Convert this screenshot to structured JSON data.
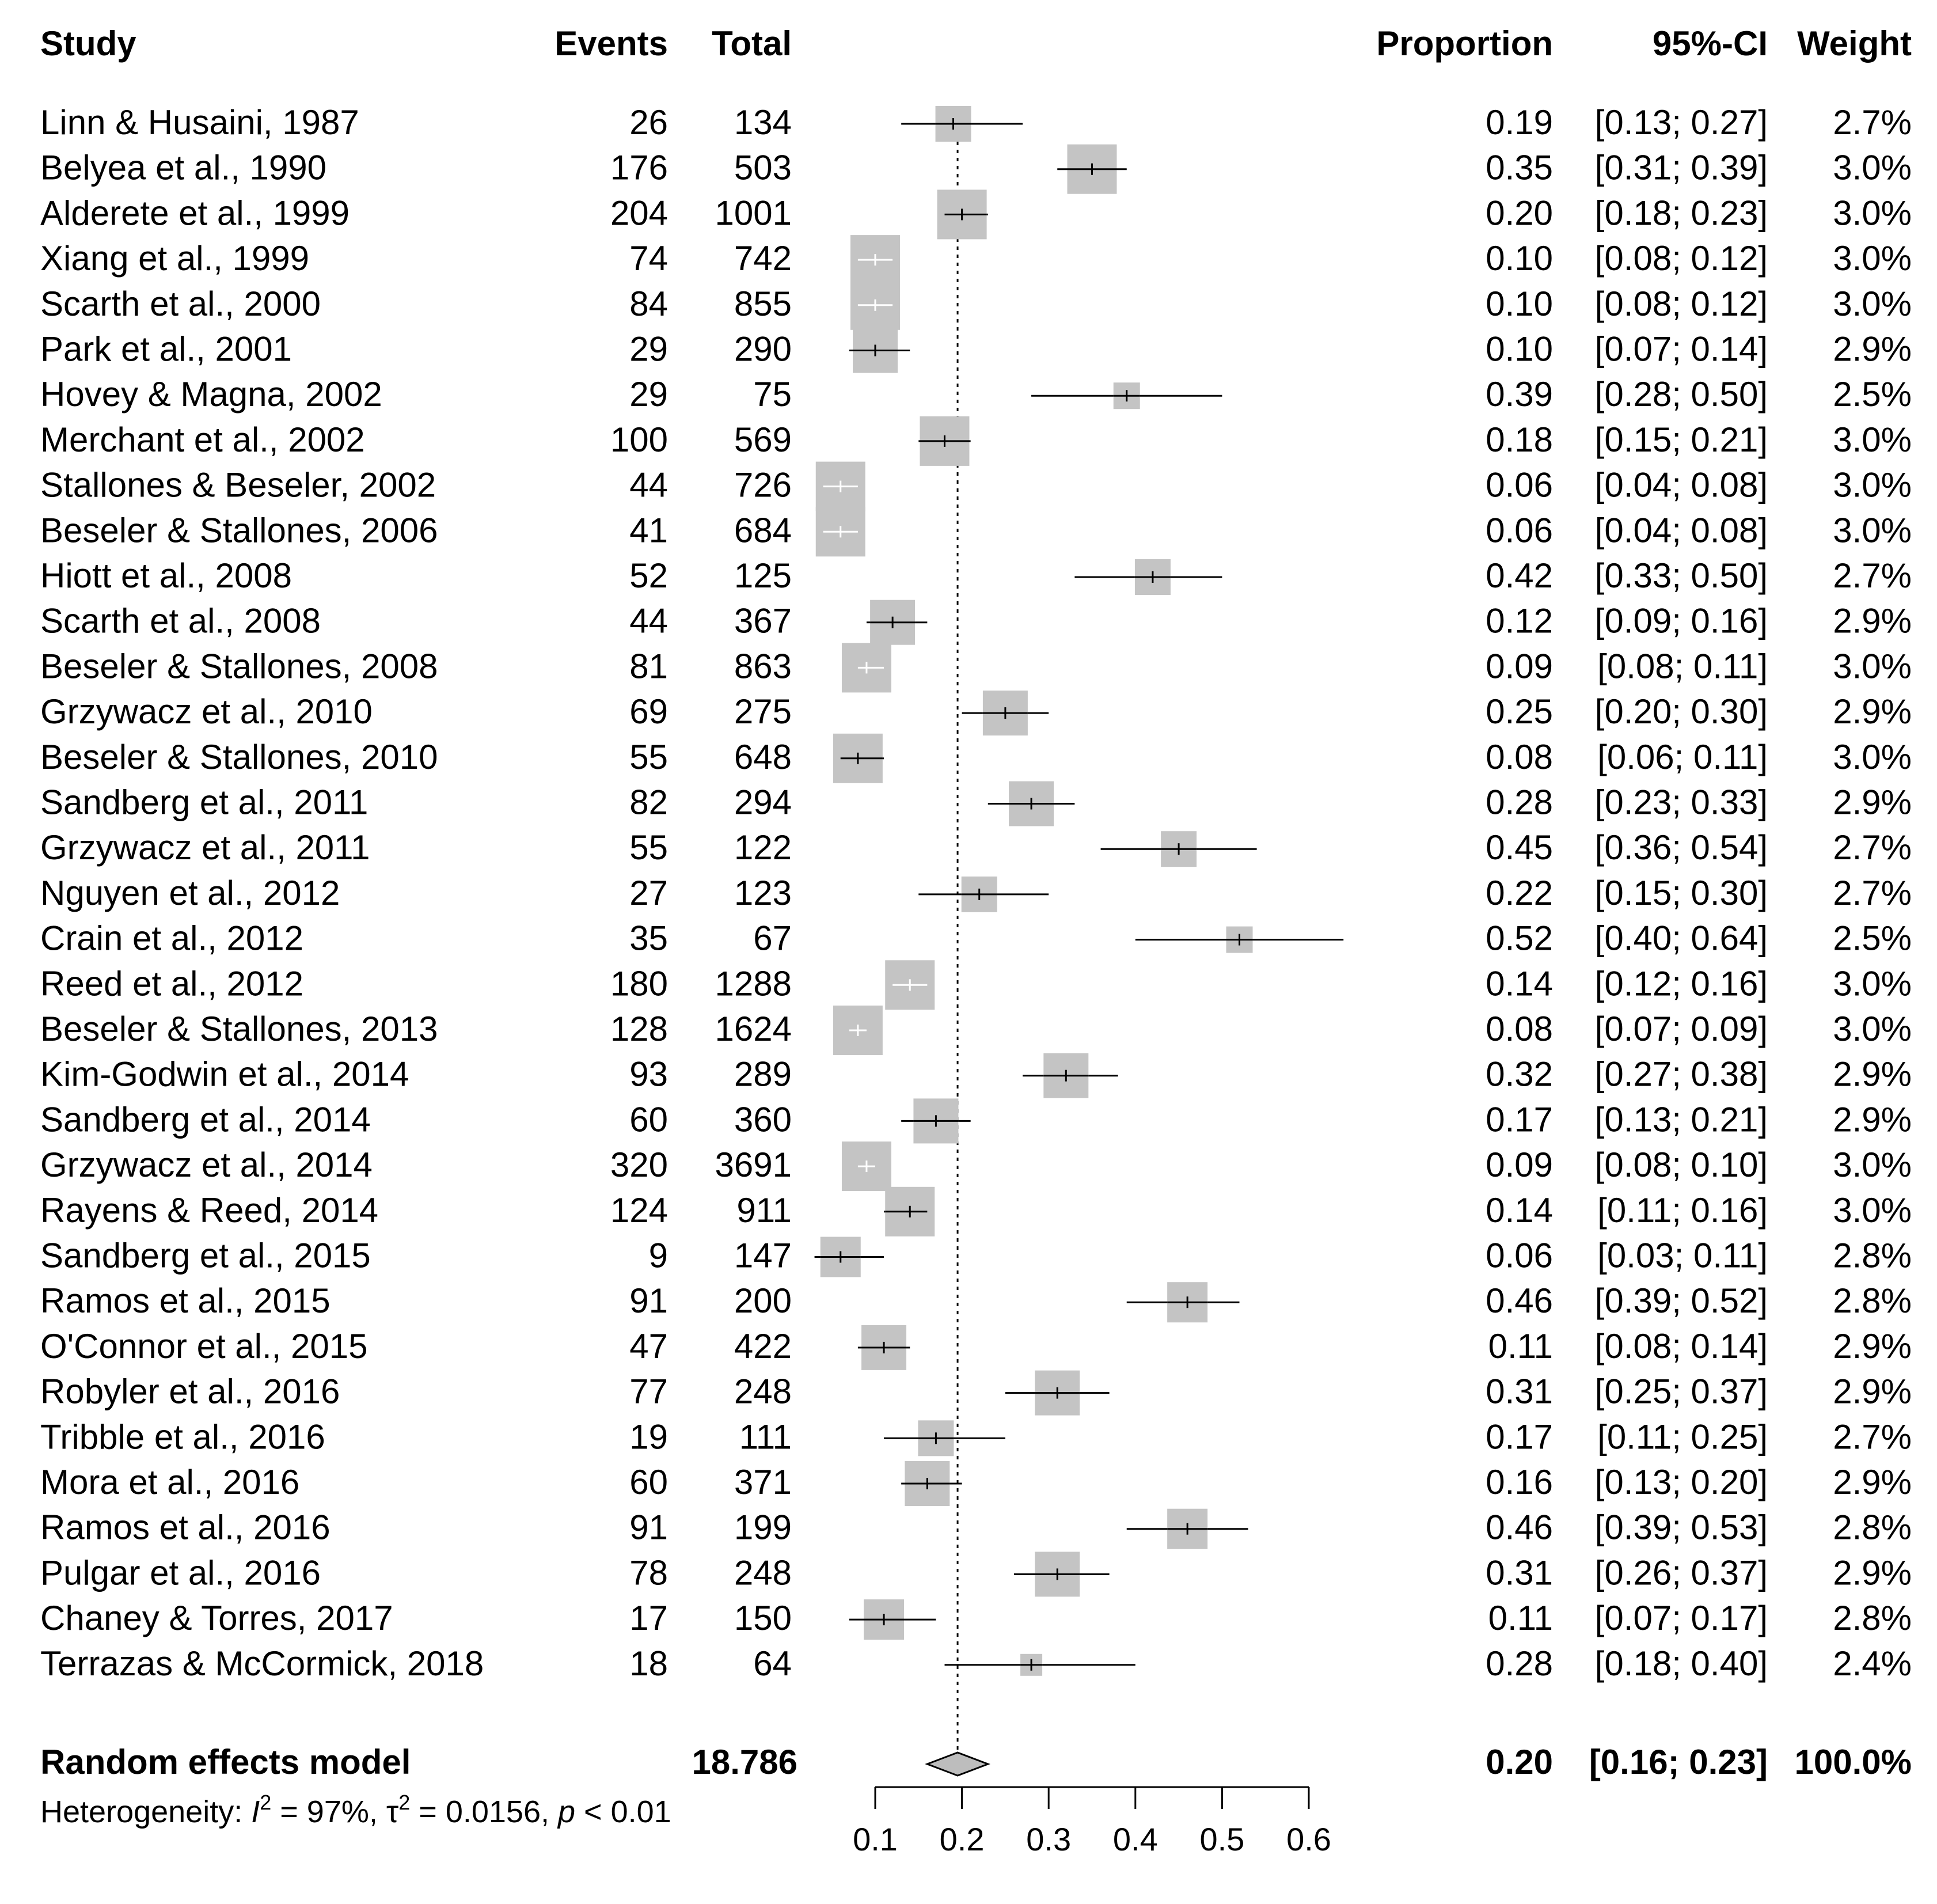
{
  "chart_data": {
    "type": "forest",
    "columns": {
      "study": "Study",
      "events": "Events",
      "total": "Total",
      "proportion": "Proportion",
      "ci": "95%-CI",
      "weight": "Weight"
    },
    "studies": [
      {
        "study": "Linn & Husaini, 1987",
        "events": "26",
        "total": "134",
        "prop_text": "0.19",
        "ci_text": "[0.13; 0.27]",
        "weight_text": "2.7%",
        "prop": 0.19,
        "lower": 0.13,
        "upper": 0.27,
        "weight": 2.7
      },
      {
        "study": "Belyea et al., 1990",
        "events": "176",
        "total": "503",
        "prop_text": "0.35",
        "ci_text": "[0.31; 0.39]",
        "weight_text": "3.0%",
        "prop": 0.35,
        "lower": 0.31,
        "upper": 0.39,
        "weight": 3.0
      },
      {
        "study": "Alderete et al., 1999",
        "events": "204",
        "total": "1001",
        "prop_text": "0.20",
        "ci_text": "[0.18; 0.23]",
        "weight_text": "3.0%",
        "prop": 0.2,
        "lower": 0.18,
        "upper": 0.23,
        "weight": 3.0
      },
      {
        "study": "Xiang et al., 1999",
        "events": "74",
        "total": "742",
        "prop_text": "0.10",
        "ci_text": "[0.08; 0.12]",
        "weight_text": "3.0%",
        "prop": 0.1,
        "lower": 0.08,
        "upper": 0.12,
        "weight": 3.0
      },
      {
        "study": "Scarth et al., 2000",
        "events": "84",
        "total": "855",
        "prop_text": "0.10",
        "ci_text": "[0.08; 0.12]",
        "weight_text": "3.0%",
        "prop": 0.1,
        "lower": 0.08,
        "upper": 0.12,
        "weight": 3.0
      },
      {
        "study": "Park et al., 2001",
        "events": "29",
        "total": "290",
        "prop_text": "0.10",
        "ci_text": "[0.07; 0.14]",
        "weight_text": "2.9%",
        "prop": 0.1,
        "lower": 0.07,
        "upper": 0.14,
        "weight": 2.9
      },
      {
        "study": "Hovey & Magna, 2002",
        "events": "29",
        "total": "75",
        "prop_text": "0.39",
        "ci_text": "[0.28; 0.50]",
        "weight_text": "2.5%",
        "prop": 0.39,
        "lower": 0.28,
        "upper": 0.5,
        "weight": 2.5
      },
      {
        "study": "Merchant et al., 2002",
        "events": "100",
        "total": "569",
        "prop_text": "0.18",
        "ci_text": "[0.15; 0.21]",
        "weight_text": "3.0%",
        "prop": 0.18,
        "lower": 0.15,
        "upper": 0.21,
        "weight": 3.0
      },
      {
        "study": "Stallones & Beseler, 2002",
        "events": "44",
        "total": "726",
        "prop_text": "0.06",
        "ci_text": "[0.04; 0.08]",
        "weight_text": "3.0%",
        "prop": 0.06,
        "lower": 0.04,
        "upper": 0.08,
        "weight": 3.0
      },
      {
        "study": "Beseler & Stallones, 2006",
        "events": "41",
        "total": "684",
        "prop_text": "0.06",
        "ci_text": "[0.04; 0.08]",
        "weight_text": "3.0%",
        "prop": 0.06,
        "lower": 0.04,
        "upper": 0.08,
        "weight": 3.0
      },
      {
        "study": "Hiott et al., 2008",
        "events": "52",
        "total": "125",
        "prop_text": "0.42",
        "ci_text": "[0.33; 0.50]",
        "weight_text": "2.7%",
        "prop": 0.42,
        "lower": 0.33,
        "upper": 0.5,
        "weight": 2.7
      },
      {
        "study": "Scarth et al., 2008",
        "events": "44",
        "total": "367",
        "prop_text": "0.12",
        "ci_text": "[0.09; 0.16]",
        "weight_text": "2.9%",
        "prop": 0.12,
        "lower": 0.09,
        "upper": 0.16,
        "weight": 2.9
      },
      {
        "study": "Beseler & Stallones, 2008",
        "events": "81",
        "total": "863",
        "prop_text": "0.09",
        "ci_text": "[0.08; 0.11]",
        "weight_text": "3.0%",
        "prop": 0.09,
        "lower": 0.08,
        "upper": 0.11,
        "weight": 3.0
      },
      {
        "study": "Grzywacz et al., 2010",
        "events": "69",
        "total": "275",
        "prop_text": "0.25",
        "ci_text": "[0.20; 0.30]",
        "weight_text": "2.9%",
        "prop": 0.25,
        "lower": 0.2,
        "upper": 0.3,
        "weight": 2.9
      },
      {
        "study": "Beseler & Stallones, 2010",
        "events": "55",
        "total": "648",
        "prop_text": "0.08",
        "ci_text": "[0.06; 0.11]",
        "weight_text": "3.0%",
        "prop": 0.08,
        "lower": 0.06,
        "upper": 0.11,
        "weight": 3.0
      },
      {
        "study": "Sandberg et al., 2011",
        "events": "82",
        "total": "294",
        "prop_text": "0.28",
        "ci_text": "[0.23; 0.33]",
        "weight_text": "2.9%",
        "prop": 0.28,
        "lower": 0.23,
        "upper": 0.33,
        "weight": 2.9
      },
      {
        "study": "Grzywacz et al., 2011",
        "events": "55",
        "total": "122",
        "prop_text": "0.45",
        "ci_text": "[0.36; 0.54]",
        "weight_text": "2.7%",
        "prop": 0.45,
        "lower": 0.36,
        "upper": 0.54,
        "weight": 2.7
      },
      {
        "study": "Nguyen et al., 2012",
        "events": "27",
        "total": "123",
        "prop_text": "0.22",
        "ci_text": "[0.15; 0.30]",
        "weight_text": "2.7%",
        "prop": 0.22,
        "lower": 0.15,
        "upper": 0.3,
        "weight": 2.7
      },
      {
        "study": "Crain et al., 2012",
        "events": "35",
        "total": "67",
        "prop_text": "0.52",
        "ci_text": "[0.40; 0.64]",
        "weight_text": "2.5%",
        "prop": 0.52,
        "lower": 0.4,
        "upper": 0.64,
        "weight": 2.5
      },
      {
        "study": "Reed et al., 2012",
        "events": "180",
        "total": "1288",
        "prop_text": "0.14",
        "ci_text": "[0.12; 0.16]",
        "weight_text": "3.0%",
        "prop": 0.14,
        "lower": 0.12,
        "upper": 0.16,
        "weight": 3.0
      },
      {
        "study": "Beseler & Stallones, 2013",
        "events": "128",
        "total": "1624",
        "prop_text": "0.08",
        "ci_text": "[0.07; 0.09]",
        "weight_text": "3.0%",
        "prop": 0.08,
        "lower": 0.07,
        "upper": 0.09,
        "weight": 3.0
      },
      {
        "study": "Kim-Godwin et al., 2014",
        "events": "93",
        "total": "289",
        "prop_text": "0.32",
        "ci_text": "[0.27; 0.38]",
        "weight_text": "2.9%",
        "prop": 0.32,
        "lower": 0.27,
        "upper": 0.38,
        "weight": 2.9
      },
      {
        "study": "Sandberg et al., 2014",
        "events": "60",
        "total": "360",
        "prop_text": "0.17",
        "ci_text": "[0.13; 0.21]",
        "weight_text": "2.9%",
        "prop": 0.17,
        "lower": 0.13,
        "upper": 0.21,
        "weight": 2.9
      },
      {
        "study": "Grzywacz et al., 2014",
        "events": "320",
        "total": "3691",
        "prop_text": "0.09",
        "ci_text": "[0.08; 0.10]",
        "weight_text": "3.0%",
        "prop": 0.09,
        "lower": 0.08,
        "upper": 0.1,
        "weight": 3.0
      },
      {
        "study": "Rayens & Reed, 2014",
        "events": "124",
        "total": "911",
        "prop_text": "0.14",
        "ci_text": "[0.11; 0.16]",
        "weight_text": "3.0%",
        "prop": 0.14,
        "lower": 0.11,
        "upper": 0.16,
        "weight": 3.0
      },
      {
        "study": "Sandberg et al., 2015",
        "events": "9",
        "total": "147",
        "prop_text": "0.06",
        "ci_text": "[0.03; 0.11]",
        "weight_text": "2.8%",
        "prop": 0.06,
        "lower": 0.03,
        "upper": 0.11,
        "weight": 2.8
      },
      {
        "study": "Ramos et al., 2015",
        "events": "91",
        "total": "200",
        "prop_text": "0.46",
        "ci_text": "[0.39; 0.52]",
        "weight_text": "2.8%",
        "prop": 0.46,
        "lower": 0.39,
        "upper": 0.52,
        "weight": 2.8
      },
      {
        "study": "O'Connor et al., 2015",
        "events": "47",
        "total": "422",
        "prop_text": "0.11",
        "ci_text": "[0.08; 0.14]",
        "weight_text": "2.9%",
        "prop": 0.11,
        "lower": 0.08,
        "upper": 0.14,
        "weight": 2.9
      },
      {
        "study": "Robyler et al., 2016",
        "events": "77",
        "total": "248",
        "prop_text": "0.31",
        "ci_text": "[0.25; 0.37]",
        "weight_text": "2.9%",
        "prop": 0.31,
        "lower": 0.25,
        "upper": 0.37,
        "weight": 2.9
      },
      {
        "study": "Tribble et al., 2016",
        "events": "19",
        "total": "111",
        "prop_text": "0.17",
        "ci_text": "[0.11; 0.25]",
        "weight_text": "2.7%",
        "prop": 0.17,
        "lower": 0.11,
        "upper": 0.25,
        "weight": 2.7
      },
      {
        "study": "Mora et al., 2016",
        "events": "60",
        "total": "371",
        "prop_text": "0.16",
        "ci_text": "[0.13; 0.20]",
        "weight_text": "2.9%",
        "prop": 0.16,
        "lower": 0.13,
        "upper": 0.2,
        "weight": 2.9
      },
      {
        "study": "Ramos et al., 2016",
        "events": "91",
        "total": "199",
        "prop_text": "0.46",
        "ci_text": "[0.39; 0.53]",
        "weight_text": "2.8%",
        "prop": 0.46,
        "lower": 0.39,
        "upper": 0.53,
        "weight": 2.8
      },
      {
        "study": "Pulgar et al., 2016",
        "events": "78",
        "total": "248",
        "prop_text": "0.31",
        "ci_text": "[0.26; 0.37]",
        "weight_text": "2.9%",
        "prop": 0.31,
        "lower": 0.26,
        "upper": 0.37,
        "weight": 2.9
      },
      {
        "study": "Chaney & Torres, 2017",
        "events": "17",
        "total": "150",
        "prop_text": "0.11",
        "ci_text": "[0.07; 0.17]",
        "weight_text": "2.8%",
        "prop": 0.11,
        "lower": 0.07,
        "upper": 0.17,
        "weight": 2.8
      },
      {
        "study": "Terrazas & McCormick, 2018",
        "events": "18",
        "total": "64",
        "prop_text": "0.28",
        "ci_text": "[0.18; 0.40]",
        "weight_text": "2.4%",
        "prop": 0.28,
        "lower": 0.18,
        "upper": 0.4,
        "weight": 2.4
      }
    ],
    "summary": {
      "label": "Random effects model",
      "total": "18786",
      "prop_text": "0.20",
      "ci_text": "[0.16; 0.23]",
      "weight_text": "100.0%",
      "prop": 0.195,
      "lower": 0.16,
      "upper": 0.23
    },
    "heterogeneity": {
      "prefix": "Heterogeneity: ",
      "i2_symbol": "I",
      "i2_value": " = 97%, ",
      "tau_symbol": "τ",
      "tau_value": " = 0.0156, ",
      "p_symbol": "p",
      "p_value": " < 0.01",
      "sup": "2"
    },
    "axis": {
      "min": 0.1,
      "max": 0.6,
      "ticks": [
        0.1,
        0.2,
        0.3,
        0.4,
        0.5,
        0.6
      ],
      "tick_labels": [
        "0.1",
        "0.2",
        "0.3",
        "0.4",
        "0.5",
        "0.6"
      ],
      "reference_line": 0.195
    },
    "colors": {
      "box": "#c4c4c4",
      "line": "#000000",
      "diamond": "#bdbdbd",
      "text": "#000000",
      "inner_light": "#ffffff"
    }
  }
}
